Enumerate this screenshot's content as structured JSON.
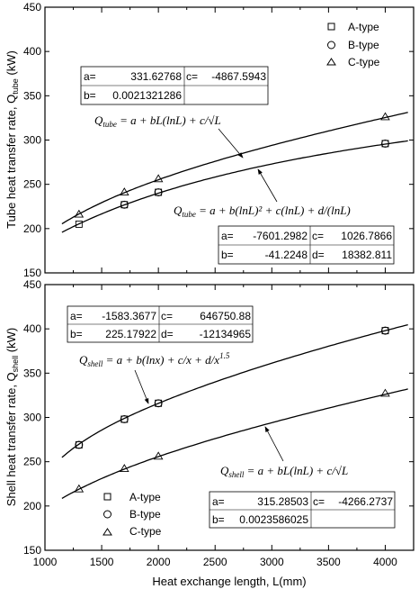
{
  "figure": {
    "x_axis_label": "Heat exchange length, L(mm)",
    "x_ticks": [
      "1000",
      "1500",
      "2000",
      "2500",
      "3000",
      "3500",
      "4000"
    ],
    "x_range": [
      1000,
      4250
    ]
  },
  "chart_data": [
    {
      "type": "scatter",
      "panel": "tube",
      "ylabel_main": "Tube heat transfer rate, Q",
      "ylabel_sub": "tube",
      "ylabel_unit": " (kW)",
      "ylim": [
        150,
        450
      ],
      "y_ticks": [
        "150",
        "200",
        "250",
        "300",
        "350",
        "400",
        "450"
      ],
      "legend": {
        "placement": "top-right",
        "entries": [
          {
            "marker": "square",
            "label": "A-type"
          },
          {
            "marker": "circle",
            "label": "B-type"
          },
          {
            "marker": "triangle",
            "label": "C-type"
          }
        ]
      },
      "series": [
        {
          "name": "A-type",
          "marker": "square",
          "x": [
            1300,
            1700,
            2000,
            4000
          ],
          "y": [
            205,
            227,
            241,
            296
          ]
        },
        {
          "name": "B-type",
          "marker": "circle",
          "x": [
            1700,
            2000,
            4000
          ],
          "y": [
            227,
            241,
            296
          ]
        },
        {
          "name": "C-type",
          "marker": "triangle",
          "x": [
            1300,
            1700,
            2000,
            4000
          ],
          "y": [
            216,
            241,
            256,
            326
          ]
        }
      ],
      "fit_curves": [
        {
          "model": "a + b*L*ln(L) + c/sqrt(L)",
          "a": 331.62768,
          "b": 0.0021321286,
          "c": -4867.5943,
          "x_range": [
            1150,
            4200
          ]
        },
        {
          "model": "a + b*(ln L)^2 + c*ln(L) + d/ln(L)",
          "a": -7601.2982,
          "b": -41.2248,
          "c": 1026.7866,
          "d": 18382.811,
          "x_range": [
            1150,
            4200
          ]
        }
      ],
      "annotations": [
        {
          "equation": [
            "Q",
            "tube",
            " = a + bL(lnL) + c/√L"
          ],
          "table": [
            [
              "a=",
              "331.62768",
              "c=",
              "-4867.5943"
            ],
            [
              "b=",
              "0.0021321286",
              "",
              ""
            ]
          ]
        },
        {
          "equation": [
            "Q",
            "tube",
            " = a + b(lnL)² + c(lnL) + d/(lnL)"
          ],
          "table": [
            [
              "a=",
              "-7601.2982",
              "c=",
              "1026.7866"
            ],
            [
              "b=",
              "-41.2248",
              "d=",
              "18382.811"
            ]
          ]
        }
      ]
    },
    {
      "type": "scatter",
      "panel": "shell",
      "ylabel_main": "Shell heat transfer rate, Q",
      "ylabel_sub": "shell",
      "ylabel_unit": " (kW)",
      "ylim": [
        150,
        450
      ],
      "y_ticks": [
        "150",
        "200",
        "250",
        "300",
        "350",
        "400",
        "450"
      ],
      "legend": {
        "placement": "bottom-left",
        "entries": [
          {
            "marker": "square",
            "label": "A-type"
          },
          {
            "marker": "circle",
            "label": "B-type"
          },
          {
            "marker": "triangle",
            "label": "C-type"
          }
        ]
      },
      "series": [
        {
          "name": "A-type",
          "marker": "square",
          "x": [
            1300,
            1700,
            2000,
            4000
          ],
          "y": [
            269,
            298,
            316,
            398
          ]
        },
        {
          "name": "B-type",
          "marker": "circle",
          "x": [
            1300,
            1700,
            2000,
            4000
          ],
          "y": [
            269,
            298,
            316,
            398
          ]
        },
        {
          "name": "C-type",
          "marker": "triangle",
          "x": [
            1300,
            1700,
            2000,
            4000
          ],
          "y": [
            219,
            242,
            256,
            327
          ]
        }
      ],
      "fit_curves": [
        {
          "model": "a + b*ln(x) + c/x + d/x^1.5",
          "a": -1583.3677,
          "b": 225.17922,
          "c": 646750.88,
          "d": -12134965,
          "x_range": [
            1150,
            4200
          ]
        },
        {
          "model": "a + b*L*ln(L) + c/sqrt(L)",
          "a": 315.28503,
          "b": 0.0023586025,
          "c": -4266.2737,
          "x_range": [
            1150,
            4200
          ]
        }
      ],
      "annotations": [
        {
          "equation": [
            "Q",
            "shell",
            " = a + b(lnx) + c/x + d/x",
            "1.5"
          ],
          "table": [
            [
              "a=",
              "-1583.3677",
              "c=",
              "646750.88"
            ],
            [
              "b=",
              "225.17922",
              "d=",
              "-12134965"
            ]
          ]
        },
        {
          "equation": [
            "Q",
            "shell",
            " = a + bL(lnL) + c/√L"
          ],
          "table": [
            [
              "a=",
              "315.28503",
              "c=",
              "-4266.2737"
            ],
            [
              "b=",
              "0.0023586025",
              "",
              ""
            ]
          ]
        }
      ]
    }
  ]
}
